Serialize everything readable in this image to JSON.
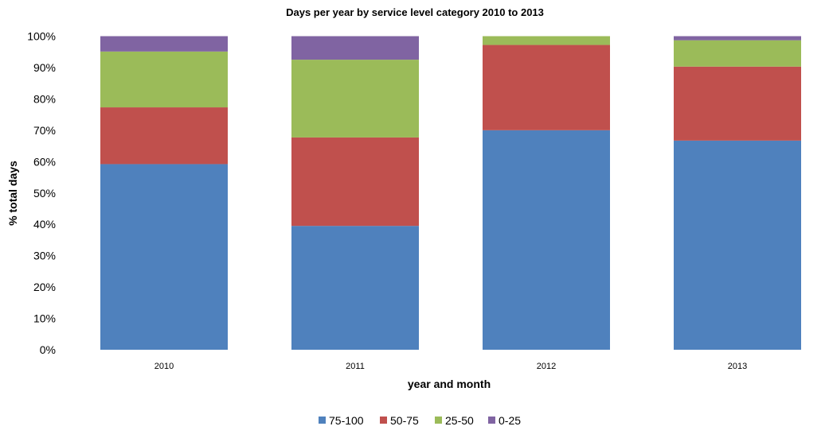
{
  "chart_data": {
    "type": "bar",
    "stacked": "percent",
    "title": "Days per year by service level category 2010 to 2013",
    "xlabel": "year and month",
    "ylabel": "% total days",
    "categories": [
      "2010",
      "2011",
      "2012",
      "2013"
    ],
    "ylim": [
      0,
      100
    ],
    "yticks": [
      "0%",
      "10%",
      "20%",
      "30%",
      "40%",
      "50%",
      "60%",
      "70%",
      "80%",
      "90%",
      "100%"
    ],
    "grid": false,
    "legend_position": "bottom",
    "series": [
      {
        "name": "75-100",
        "color": "#4f81bd",
        "values": [
          59.2,
          39.5,
          70.0,
          66.7
        ]
      },
      {
        "name": "50-75",
        "color": "#c0504d",
        "values": [
          18.1,
          28.2,
          27.2,
          23.6
        ]
      },
      {
        "name": "25-50",
        "color": "#9bbb59",
        "values": [
          17.8,
          24.8,
          2.8,
          8.4
        ]
      },
      {
        "name": "0-25",
        "color": "#8064a2",
        "values": [
          4.9,
          7.5,
          0.0,
          1.3
        ]
      }
    ]
  }
}
